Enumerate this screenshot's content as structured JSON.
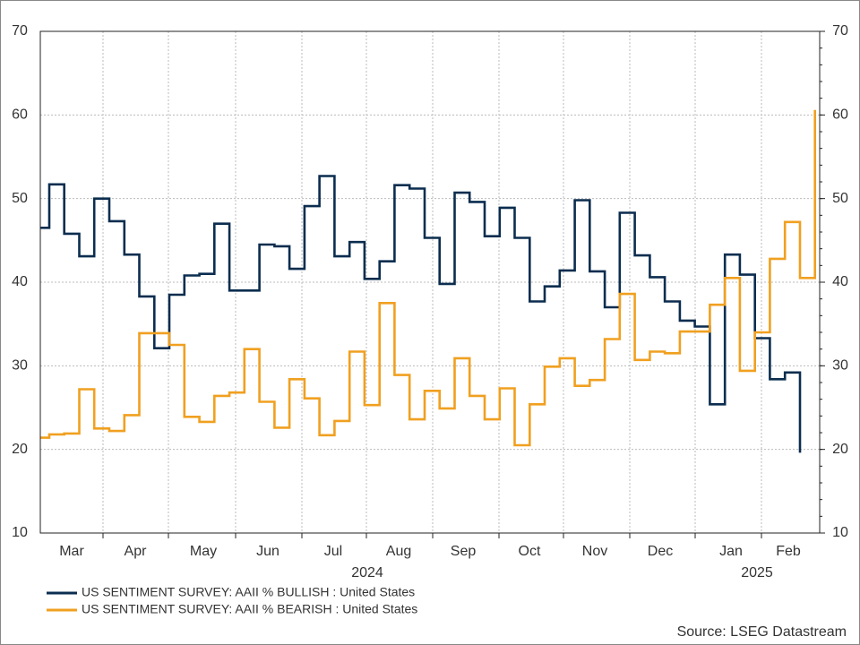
{
  "chart_data": {
    "type": "step-line",
    "months": [
      "Mar",
      "Apr",
      "May",
      "Jun",
      "Jul",
      "Aug",
      "Sep",
      "Oct",
      "Nov",
      "Dec",
      "Jan",
      "Feb"
    ],
    "years": [
      "2024",
      "2025"
    ],
    "ylim": [
      10,
      70
    ],
    "yticks": [
      10,
      20,
      30,
      40,
      50,
      60,
      70
    ],
    "grid": true,
    "series": [
      {
        "name": "US SENTIMENT SURVEY: AAII % BULLISH : United States",
        "color": "#0b2d4f",
        "values": [
          46.5,
          51.7,
          45.8,
          43.1,
          50.0,
          47.3,
          43.3,
          38.3,
          32.1,
          38.5,
          40.8,
          41.0,
          47.0,
          39.0,
          39.0,
          44.5,
          44.3,
          41.6,
          49.1,
          52.7,
          43.1,
          44.8,
          40.4,
          42.5,
          51.6,
          51.2,
          45.3,
          39.8,
          50.7,
          49.6,
          45.5,
          48.9,
          45.3,
          37.7,
          39.5,
          41.4,
          49.8,
          41.3,
          37.0,
          48.3,
          43.2,
          40.6,
          37.7,
          35.4,
          34.7,
          25.4,
          43.3,
          40.9,
          33.3,
          28.4,
          29.2,
          19.6,
          null
        ]
      },
      {
        "name": "US SENTIMENT SURVEY: AAII % BEARISH : United States",
        "color": "#f0a020",
        "values": [
          21.4,
          21.8,
          21.9,
          27.2,
          22.5,
          22.2,
          24.1,
          33.9,
          33.9,
          32.5,
          23.9,
          23.3,
          26.4,
          26.8,
          32.0,
          25.7,
          22.6,
          28.4,
          26.1,
          21.7,
          23.4,
          31.7,
          25.3,
          37.5,
          28.9,
          23.6,
          27.0,
          24.9,
          30.9,
          26.4,
          23.6,
          27.3,
          20.5,
          25.4,
          29.9,
          30.9,
          27.6,
          28.3,
          33.2,
          38.6,
          30.7,
          31.7,
          31.5,
          34.1,
          34.1,
          37.3,
          40.5,
          29.4,
          34.0,
          42.8,
          47.2,
          40.5,
          60.6
        ]
      }
    ],
    "source": "Source: LSEG Datastream"
  }
}
